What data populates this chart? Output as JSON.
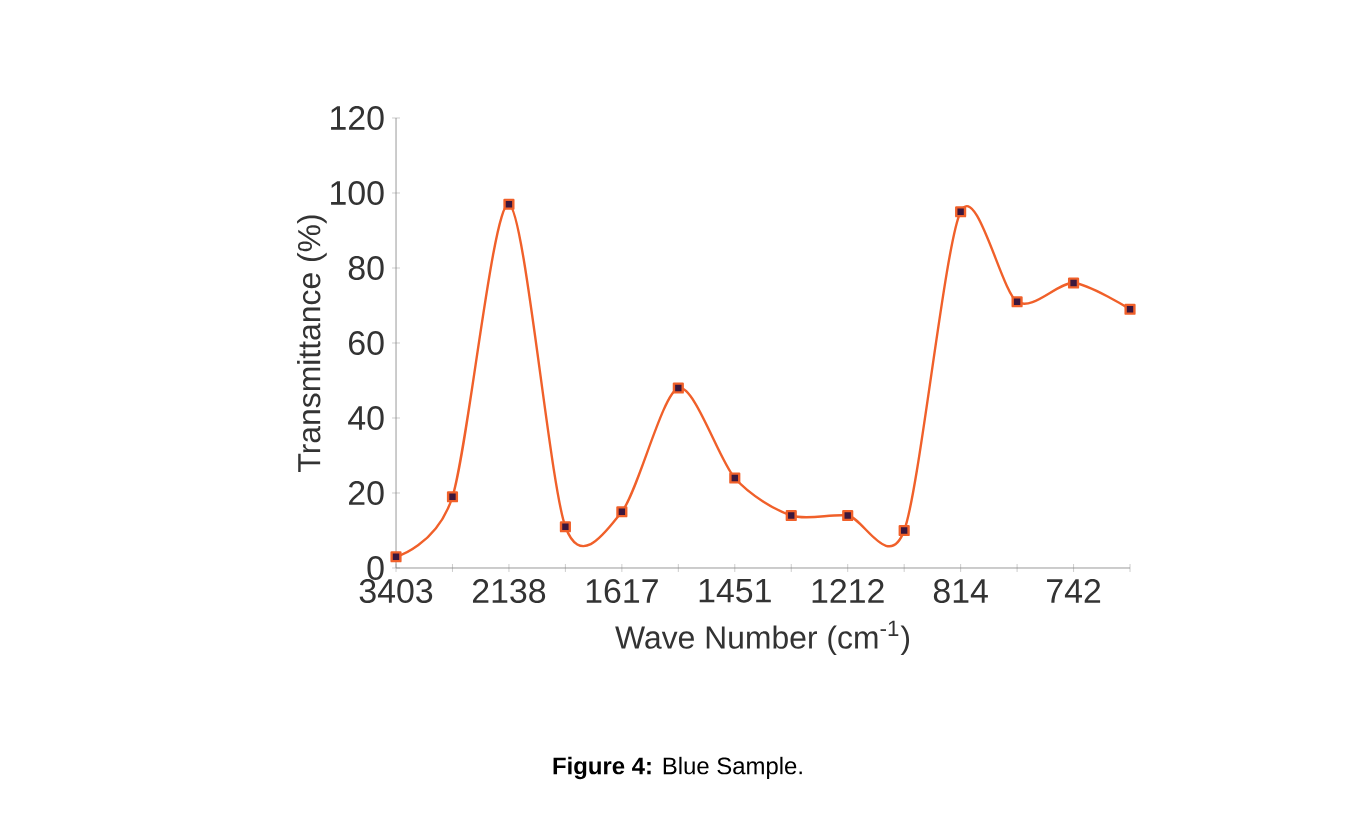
{
  "chart_data": {
    "type": "line",
    "xlabel": "Wave Number (cm$^{-1}$)",
    "ylabel": "Transmittance (%)",
    "categories": [
      "3403",
      null,
      "2138",
      null,
      "1617",
      null,
      "1451",
      null,
      "1212",
      null,
      "814",
      null,
      "742",
      null
    ],
    "series": [
      {
        "color": "#f0602a",
        "values": [
          3,
          19,
          97,
          11,
          15,
          48,
          24,
          14,
          14,
          10,
          95,
          71,
          76,
          69
        ]
      }
    ],
    "ylim": [
      0,
      120
    ],
    "yticks": [
      0,
      20,
      40,
      60,
      80,
      100,
      120
    ],
    "marker": "square",
    "line_style": "solid",
    "grid": false,
    "annotations": [
      "**Figure 4:** Blue Sample."
    ]
  }
}
